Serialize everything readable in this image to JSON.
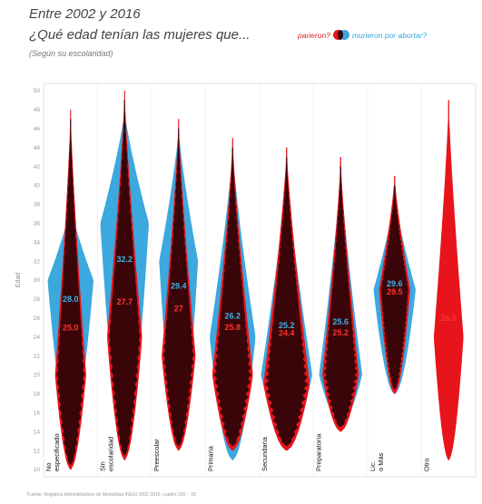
{
  "header": {
    "title_line1": "Entre 2002 y 2016",
    "title_line2": "¿Qué edad tenían las mujeres que...",
    "subtitle": "(Según su escolaridad)"
  },
  "legend": {
    "red_label": "parieron?",
    "blue_label": "murieron por abortar?"
  },
  "source": "Fuente: Registros Administrativos de Mortalidad INEGI 2002-2016, cuadro 230 -- 18",
  "colors": {
    "births": "#e8141c",
    "deaths": "#3ba8de",
    "births_dark": "#3a0508"
  },
  "chart_data": {
    "type": "violin",
    "ylabel": "Edad",
    "ylim": [
      10,
      50
    ],
    "yticks": [
      10,
      12,
      14,
      16,
      18,
      20,
      22,
      24,
      26,
      28,
      30,
      32,
      34,
      36,
      38,
      40,
      42,
      44,
      46,
      48,
      50
    ],
    "categories": [
      {
        "label": "No especificado",
        "lines": [
          "No",
          "especificado"
        ],
        "deaths_median": "28.0",
        "births_median": "25.0",
        "deaths_range": [
          14,
          38
        ],
        "births_range": [
          10,
          48
        ],
        "deaths_peak": 30,
        "births_peak": 20,
        "deaths_width": 0.85,
        "births_width": 0.55
      },
      {
        "label": "Sin escolaridad",
        "lines": [
          "Sin",
          "escolaridad"
        ],
        "deaths_median": "32.2",
        "births_median": "27.7",
        "deaths_range": [
          13,
          48
        ],
        "births_range": [
          11,
          50
        ],
        "deaths_peak": 36,
        "births_peak": 24,
        "deaths_width": 0.9,
        "births_width": 0.62
      },
      {
        "label": "Preescolar",
        "lines": [
          "Preescolar"
        ],
        "deaths_median": "29.4",
        "births_median": "27",
        "deaths_range": [
          13,
          46
        ],
        "births_range": [
          12,
          47
        ],
        "deaths_peak": 32,
        "births_peak": 22,
        "deaths_width": 0.72,
        "births_width": 0.6
      },
      {
        "label": "Primaria",
        "lines": [
          "Primaria"
        ],
        "deaths_median": "26.2",
        "births_median": "25.8",
        "deaths_range": [
          11,
          44
        ],
        "births_range": [
          12,
          45
        ],
        "deaths_peak": 24,
        "births_peak": 20,
        "deaths_width": 0.85,
        "births_width": 0.72
      },
      {
        "label": "Secundaria",
        "lines": [
          "Secundaria"
        ],
        "deaths_median": "25.2",
        "births_median": "24.4",
        "deaths_range": [
          13,
          42
        ],
        "births_range": [
          12,
          44
        ],
        "deaths_peak": 20,
        "births_peak": 19,
        "deaths_width": 0.95,
        "births_width": 0.82
      },
      {
        "label": "Preparatoria",
        "lines": [
          "Preparatoria"
        ],
        "deaths_median": "25.6",
        "births_median": "25.2",
        "deaths_range": [
          15,
          42
        ],
        "births_range": [
          14,
          43
        ],
        "deaths_peak": 20,
        "births_peak": 20,
        "deaths_width": 0.8,
        "births_width": 0.65
      },
      {
        "label": "Lic. o Más",
        "lines": [
          "Lic.",
          "o Más"
        ],
        "deaths_median": "29.6",
        "births_median": "29.5",
        "deaths_range": [
          18,
          39
        ],
        "births_range": [
          18,
          41
        ],
        "deaths_peak": 29,
        "births_peak": 29,
        "deaths_width": 0.78,
        "births_width": 0.55
      },
      {
        "label": "Otro",
        "lines": [
          "Otro"
        ],
        "deaths_median": "",
        "births_median": "26.0",
        "deaths_range": null,
        "births_range": [
          11,
          49
        ],
        "deaths_peak": null,
        "births_peak": 24,
        "deaths_width": 0,
        "births_width": 0.55
      }
    ]
  }
}
